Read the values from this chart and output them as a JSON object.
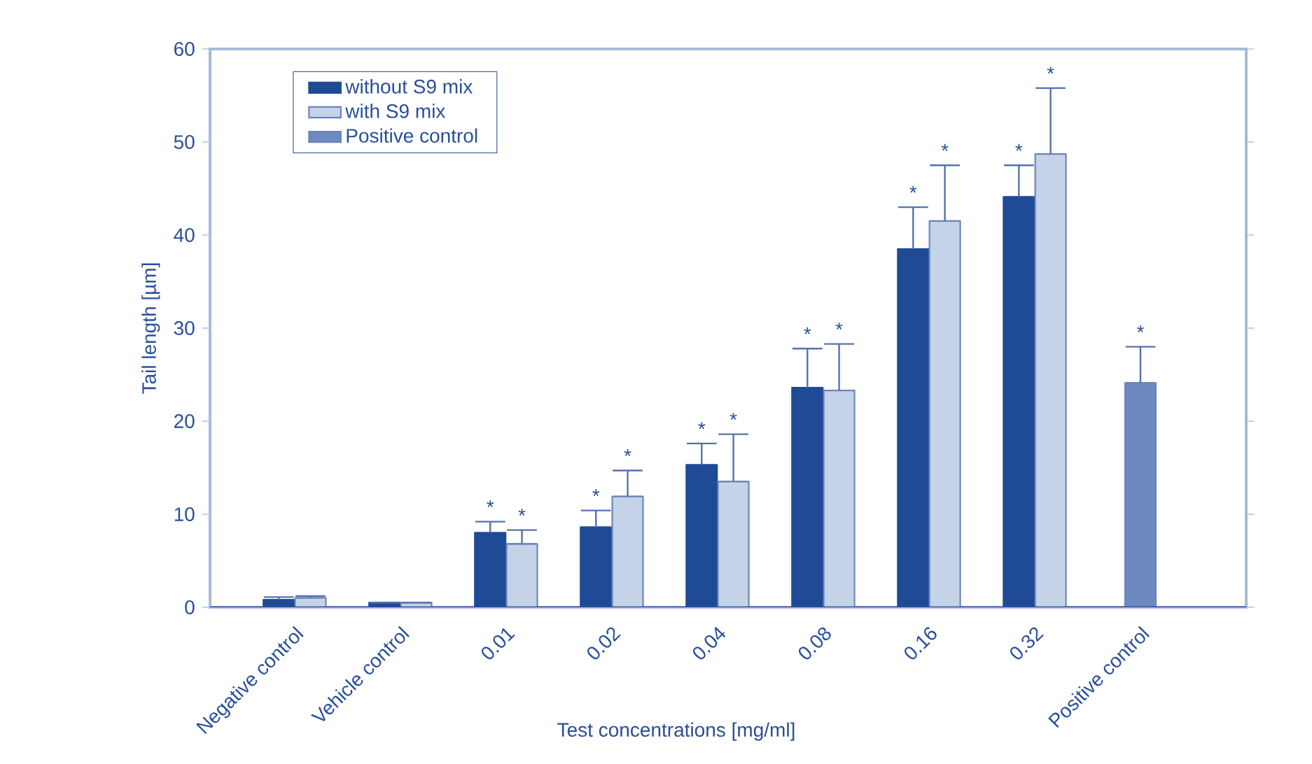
{
  "chart_data": {
    "type": "bar",
    "xlabel": "Test concentrations [mg/ml]",
    "ylabel": "Tail length [µm]",
    "categories": [
      "Negative control",
      "Vehicle control",
      "0.01",
      "0.02",
      "0.04",
      "0.08",
      "0.16",
      "0.32",
      "Positive control"
    ],
    "series": [
      {
        "name": "without S9 mix",
        "color": "#1f4a96",
        "values": [
          0.8,
          0.5,
          8.0,
          8.6,
          15.3,
          23.6,
          38.5,
          44.1,
          null
        ],
        "errors": [
          [
            0.8,
            1.1
          ],
          null,
          [
            8.0,
            9.2
          ],
          [
            8.6,
            10.4
          ],
          [
            15.3,
            17.6
          ],
          [
            23.6,
            27.8
          ],
          [
            38.5,
            43.0
          ],
          [
            44.1,
            47.5
          ],
          null
        ]
      },
      {
        "name": "with S9 mix",
        "color": "#c5d3e8",
        "values": [
          1.0,
          0.5,
          6.8,
          11.9,
          13.5,
          23.3,
          41.5,
          48.7,
          null
        ],
        "errors": [
          [
            1.0,
            1.2
          ],
          null,
          [
            6.8,
            8.3
          ],
          [
            11.9,
            14.7
          ],
          [
            13.5,
            18.6
          ],
          [
            23.3,
            28.3
          ],
          [
            41.5,
            47.5
          ],
          [
            48.7,
            55.8
          ],
          null
        ]
      },
      {
        "name": "Positive control",
        "color": "#6d89c0",
        "values": [
          null,
          null,
          null,
          null,
          null,
          null,
          null,
          null,
          24.1
        ],
        "errors": [
          null,
          null,
          null,
          null,
          null,
          null,
          null,
          null,
          [
            24.1,
            28.0
          ]
        ]
      }
    ],
    "ylim": [
      0,
      60
    ],
    "yticks": [
      0,
      10,
      20,
      30,
      40,
      50,
      60
    ],
    "grid": false,
    "legend": "top left",
    "annotations": [
      "*",
      "*",
      "*",
      "*",
      "*",
      "*",
      "*",
      "*",
      "*",
      "*",
      "*",
      "*",
      "*"
    ]
  }
}
